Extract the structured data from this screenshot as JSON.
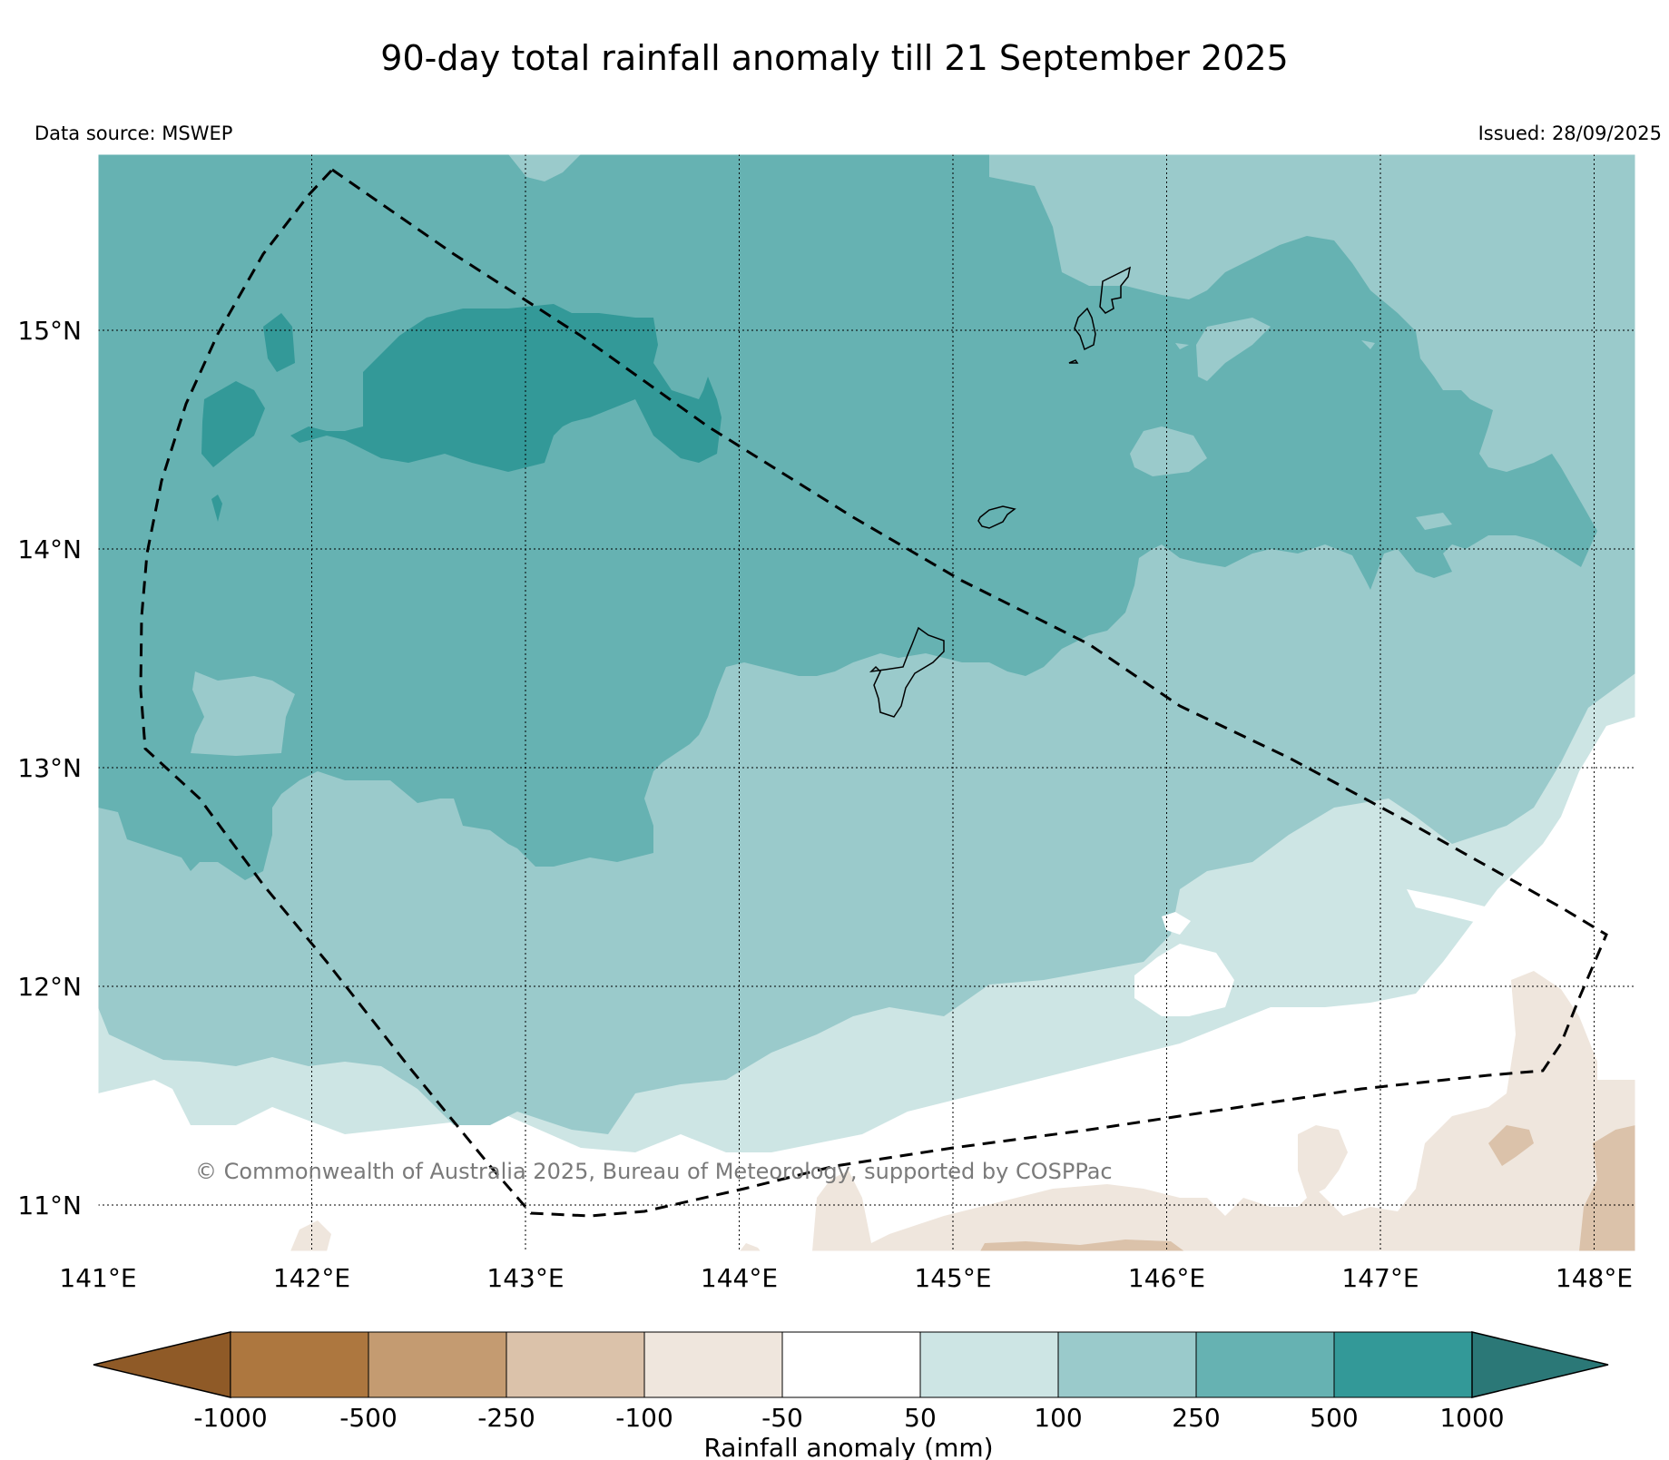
{
  "title": "90-day total rainfall anomaly till 21 September 2025",
  "data_source": "Data source: MSWEP",
  "issued": "Issued: 28/09/2025",
  "copyright": "© Commonwealth of Australia 2025, Bureau of Meteorology, supported by COSPPac",
  "map": {
    "lon_range": [
      141.0,
      148.2
    ],
    "lat_range": [
      10.8,
      15.8
    ],
    "lon_ticks": [
      "141°E",
      "142°E",
      "143°E",
      "144°E",
      "145°E",
      "146°E",
      "147°E",
      "148°E"
    ],
    "lat_ticks": [
      "15°N",
      "14°N",
      "13°N",
      "12°N",
      "11°N"
    ],
    "gridlines": true,
    "boundary": "dashed polygon (EEZ)",
    "islands": [
      "Guam",
      "Rota",
      "Tinian",
      "Saipan"
    ]
  },
  "colorbar": {
    "label": "Rainfall anomaly (mm)",
    "ticks": [
      "-1000",
      "-500",
      "-250",
      "-100",
      "-50",
      "50",
      "100",
      "250",
      "500",
      "1000"
    ],
    "colors": [
      "#8f5a27",
      "#ad773f",
      "#c49b71",
      "#dbc2aa",
      "#efe6dd",
      "#ffffff",
      "#cde5e4",
      "#9acacb",
      "#66b2b2",
      "#339998",
      "#2b7877"
    ],
    "extend": "both"
  }
}
